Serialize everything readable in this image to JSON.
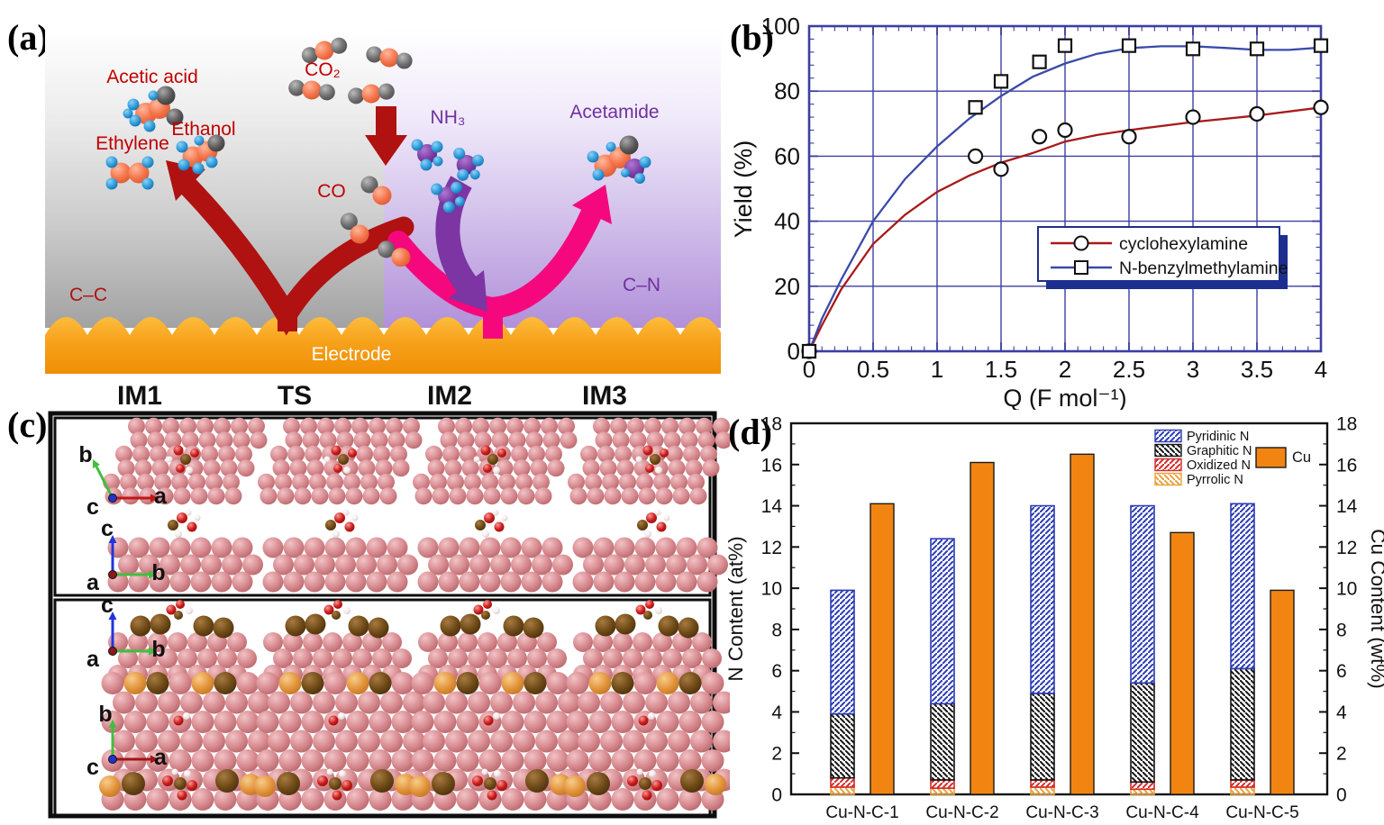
{
  "panels": {
    "a": {
      "label": "(a)",
      "molecule_labels": {
        "acetic_acid": "Acetic acid",
        "ethylene": "Ethylene",
        "ethanol": "Ethanol",
        "co2": "CO₂",
        "co": "CO",
        "nh3": "NH₃",
        "acetamide": "Acetamide"
      },
      "region_labels": {
        "cc": "C–C",
        "cn": "C–N",
        "electrode": "Electrode"
      },
      "colors": {
        "c_product_text": "#c00000",
        "n_product_text": "#7030a0",
        "cc_arrow": "#b01111",
        "cn_arrow": "#f5087e",
        "nh3_arrow": "#7c35a2",
        "electrode": "#f7a11b"
      }
    },
    "b": {
      "label": "(b)"
    },
    "c": {
      "label": "(c)",
      "headers": [
        "IM1",
        "TS",
        "IM2",
        "IM3"
      ],
      "axes": [
        {
          "up": "b",
          "right": "a",
          "origin": "c"
        },
        {
          "up": "c",
          "right": "b",
          "origin": "a"
        },
        {
          "up": "c",
          "right": "b",
          "origin": "a"
        },
        {
          "up": "b",
          "right": "a",
          "origin": "c"
        }
      ]
    },
    "d": {
      "label": "(d)"
    }
  },
  "chart_data": [
    {
      "panel": "b",
      "type": "line",
      "title": "",
      "xlabel": "Q (F mol⁻¹)",
      "ylabel": "Yield (%)",
      "xlim": [
        0,
        4
      ],
      "ylim": [
        0,
        100
      ],
      "xticks": [
        0,
        0.5,
        1,
        1.5,
        2,
        2.5,
        3,
        3.5,
        4
      ],
      "yticks": [
        0,
        20,
        40,
        60,
        80,
        100
      ],
      "x_minor_step": 0.1,
      "y_minor_step": 4,
      "grid": true,
      "frame_color": "#3c3f9f",
      "legend_position": "lower-right",
      "series": [
        {
          "name": "cyclohexylamine",
          "marker": "circle",
          "color": "#a81a1a",
          "points": [
            [
              0,
              0
            ],
            [
              1.3,
              60
            ],
            [
              1.5,
              56
            ],
            [
              1.8,
              66
            ],
            [
              2,
              68
            ],
            [
              2.5,
              66
            ],
            [
              3,
              72
            ],
            [
              3.5,
              73
            ],
            [
              4,
              75
            ]
          ],
          "fit_curve": [
            [
              0,
              0
            ],
            [
              0.1,
              8
            ],
            [
              0.25,
              19
            ],
            [
              0.5,
              33
            ],
            [
              0.75,
              42
            ],
            [
              1,
              49
            ],
            [
              1.25,
              54
            ],
            [
              1.5,
              58
            ],
            [
              1.75,
              61
            ],
            [
              2,
              64.5
            ],
            [
              2.25,
              66.5
            ],
            [
              2.5,
              68
            ],
            [
              3,
              70.5
            ],
            [
              3.5,
              72.5
            ],
            [
              4,
              75
            ]
          ]
        },
        {
          "name": "N-benzylmethylamine",
          "marker": "square",
          "color": "#3a4aa8",
          "points": [
            [
              0,
              0
            ],
            [
              1.3,
              75
            ],
            [
              1.5,
              83
            ],
            [
              1.8,
              89
            ],
            [
              2,
              94
            ],
            [
              2.5,
              94
            ],
            [
              3,
              93
            ],
            [
              3.5,
              93
            ],
            [
              4,
              94
            ]
          ],
          "fit_curve": [
            [
              0,
              0
            ],
            [
              0.1,
              10
            ],
            [
              0.25,
              22
            ],
            [
              0.5,
              40
            ],
            [
              0.75,
              53
            ],
            [
              1,
              63
            ],
            [
              1.25,
              71.5
            ],
            [
              1.5,
              78.5
            ],
            [
              1.75,
              84.5
            ],
            [
              2,
              88.5
            ],
            [
              2.25,
              91.5
            ],
            [
              2.5,
              93.2
            ],
            [
              2.75,
              93.8
            ],
            [
              3,
              93.8
            ],
            [
              3.25,
              93.3
            ],
            [
              3.5,
              92.7
            ],
            [
              3.75,
              92.7
            ],
            [
              4,
              93.4
            ]
          ]
        }
      ]
    },
    {
      "panel": "d",
      "type": "bar",
      "categories": [
        "Cu-N-C-1",
        "Cu-N-C-2",
        "Cu-N-C-3",
        "Cu-N-C-4",
        "Cu-N-C-5"
      ],
      "left_axis": {
        "label": "N Content (at%)",
        "lim": [
          0,
          18
        ],
        "tick_step": 2,
        "minor_step": 1
      },
      "right_axis": {
        "label": "Cu Content (wt%)",
        "lim": [
          0,
          18
        ],
        "tick_step": 2,
        "minor_step": 1
      },
      "n_series": [
        {
          "name": "Pyrrolic N",
          "color": "#e8a33d",
          "hatch": "\\",
          "values": [
            0.35,
            0.3,
            0.35,
            0.25,
            0.35
          ]
        },
        {
          "name": "Oxidized N",
          "color": "#d42a2a",
          "hatch": "/",
          "values": [
            0.45,
            0.4,
            0.35,
            0.35,
            0.35
          ]
        },
        {
          "name": "Graphitic N",
          "color": "#151515",
          "hatch": "\\",
          "values": [
            3.1,
            3.7,
            4.2,
            4.8,
            5.4
          ]
        },
        {
          "name": "Pyridinic N",
          "color": "#2b3bb5",
          "hatch": "/",
          "values": [
            6.0,
            8.0,
            9.1,
            8.6,
            8.0
          ]
        }
      ],
      "cu_series": {
        "name": "Cu",
        "color": "#f28511",
        "values": [
          14.1,
          16.1,
          16.5,
          12.7,
          9.9
        ]
      },
      "legend_order": [
        "Pyridinic N",
        "Graphitic N",
        "Oxidized N",
        "Pyrrolic N"
      ]
    }
  ]
}
